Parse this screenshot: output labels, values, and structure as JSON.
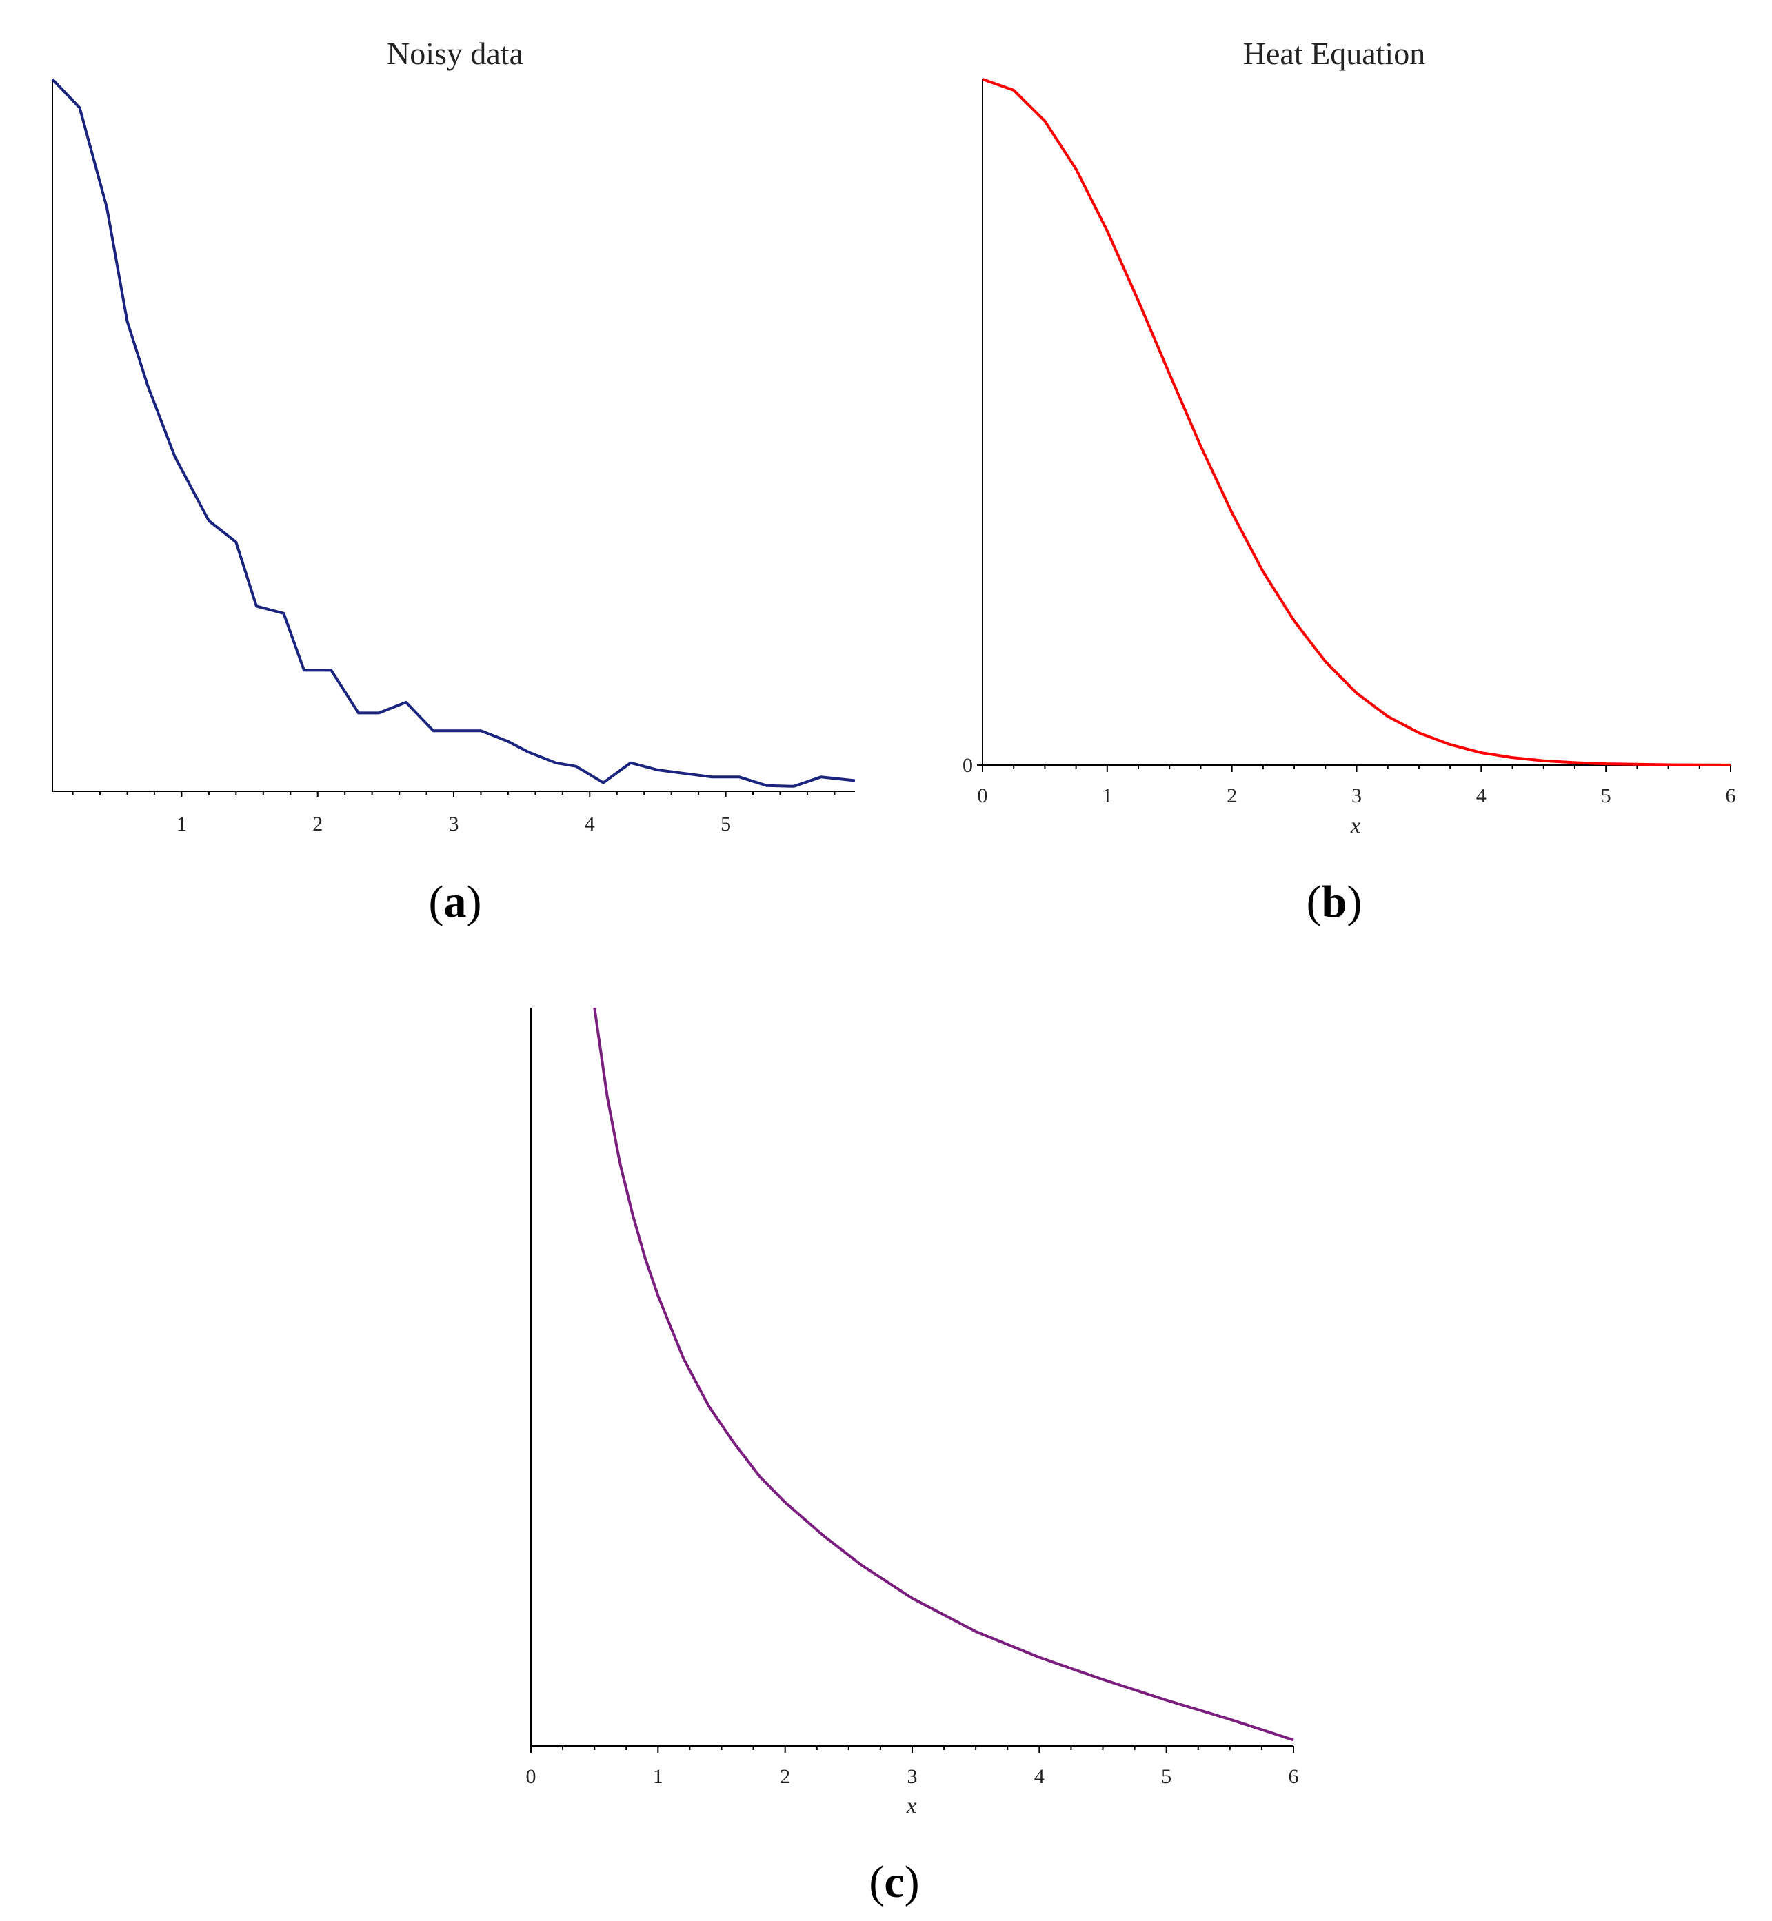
{
  "chart_data": [
    {
      "type": "line",
      "title": "Noisy data",
      "xlabel": "",
      "ylabel": "",
      "xlim": [
        0.05,
        5.95
      ],
      "ylim": [
        0,
        1.0
      ],
      "xticks": [
        1,
        2,
        3,
        4,
        5
      ],
      "yticks": [],
      "grid": false,
      "caption": "(a)",
      "color": "#1a237e",
      "x": [
        0.05,
        0.25,
        0.45,
        0.6,
        0.75,
        0.95,
        1.2,
        1.4,
        1.55,
        1.75,
        1.9,
        2.1,
        2.3,
        2.45,
        2.65,
        2.85,
        3.0,
        3.2,
        3.4,
        3.55,
        3.75,
        3.9,
        4.1,
        4.3,
        4.5,
        4.7,
        4.9,
        5.1,
        5.3,
        5.5,
        5.7,
        5.95
      ],
      "y": [
        1.0,
        0.96,
        0.82,
        0.66,
        0.57,
        0.47,
        0.38,
        0.35,
        0.26,
        0.25,
        0.17,
        0.17,
        0.11,
        0.11,
        0.125,
        0.085,
        0.085,
        0.085,
        0.07,
        0.055,
        0.04,
        0.035,
        0.012,
        0.04,
        0.03,
        0.025,
        0.02,
        0.02,
        0.008,
        0.007,
        0.02,
        0.015
      ]
    },
    {
      "type": "line",
      "title": "Heat Equation",
      "xlabel": "x",
      "ylabel": "",
      "xlim": [
        0,
        6
      ],
      "ylim": [
        0,
        1.0
      ],
      "xticks": [
        0,
        1,
        2,
        3,
        4,
        5,
        6
      ],
      "yticks": [
        0
      ],
      "grid": false,
      "caption": "(b)",
      "color": "#ff0000",
      "x": [
        0,
        0.25,
        0.5,
        0.75,
        1.0,
        1.25,
        1.5,
        1.75,
        2.0,
        2.25,
        2.5,
        2.75,
        3.0,
        3.25,
        3.5,
        3.75,
        4.0,
        4.25,
        4.5,
        4.75,
        5.0,
        5.5,
        6.0
      ],
      "y": [
        1.0,
        0.984,
        0.939,
        0.869,
        0.779,
        0.677,
        0.57,
        0.465,
        0.368,
        0.282,
        0.21,
        0.151,
        0.105,
        0.071,
        0.047,
        0.03,
        0.018,
        0.011,
        0.0063,
        0.0036,
        0.0019,
        0.0005,
        0.0001
      ]
    },
    {
      "type": "line",
      "title": "",
      "xlabel": "x",
      "ylabel": "",
      "xlim": [
        0,
        6
      ],
      "ylim": [
        0,
        1.0
      ],
      "xticks": [
        0,
        1,
        2,
        3,
        4,
        5,
        6
      ],
      "yticks": [],
      "grid": false,
      "caption": "(c)",
      "color": "#7b1f7f",
      "x": [
        0.5,
        0.6,
        0.7,
        0.8,
        0.9,
        1.0,
        1.2,
        1.4,
        1.6,
        1.8,
        2.0,
        2.3,
        2.6,
        3.0,
        3.5,
        4.0,
        4.5,
        5.0,
        5.5,
        6.0
      ],
      "y": [
        1.0,
        0.88,
        0.79,
        0.72,
        0.66,
        0.61,
        0.525,
        0.46,
        0.41,
        0.365,
        0.33,
        0.285,
        0.245,
        0.2,
        0.155,
        0.12,
        0.09,
        0.062,
        0.036,
        0.008
      ]
    }
  ]
}
